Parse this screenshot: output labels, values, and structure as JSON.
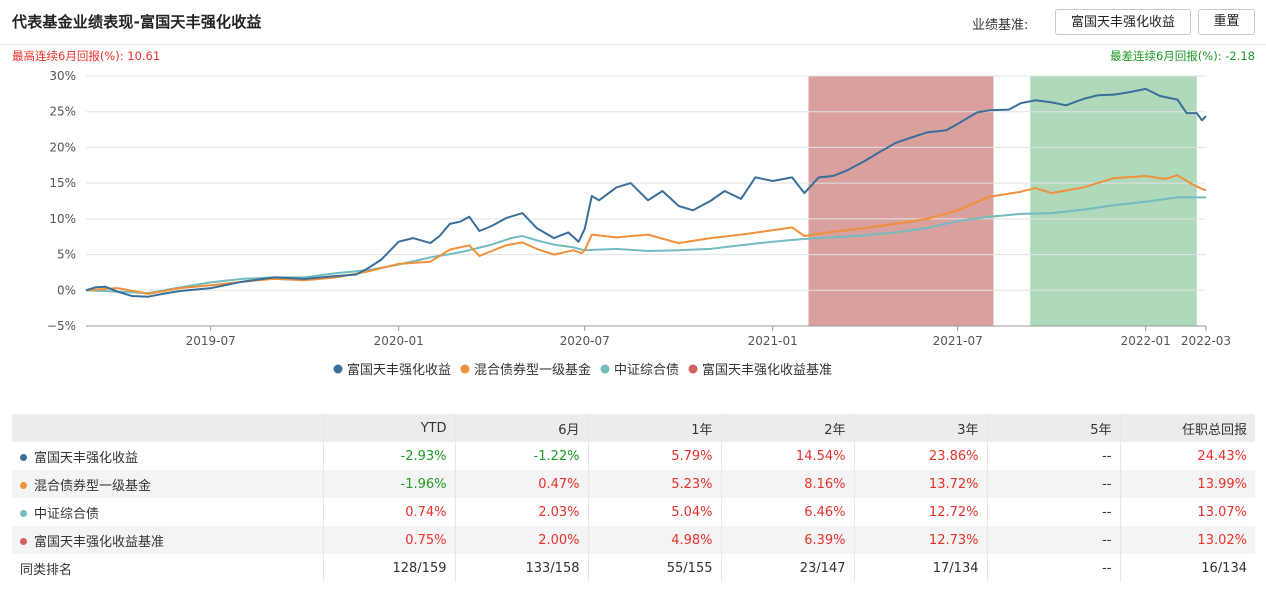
{
  "header": {
    "title": "代表基金业绩表现-富国天丰强化收益",
    "benchmark_label": "业绩基准:",
    "benchmark_value": "富国天丰强化收益",
    "reset_label": "重置"
  },
  "drawdown": {
    "max_text": "最高连续6月回报(%):  10.61",
    "min_text": "最差连续6月回报(%):  -2.18"
  },
  "colors": {
    "fund": "#3a6f9a",
    "category": "#f0913a",
    "index": "#72bcc0",
    "benchmark": "#d45f5f",
    "positive": "#e8322b",
    "negative": "#1e9a28",
    "best_period_fill": "#d28f8c",
    "worst_period_fill": "#a2d2b0"
  },
  "chart_data": {
    "type": "line",
    "ylim": [
      -5,
      30
    ],
    "y_ticks": [
      -5,
      0,
      5,
      10,
      15,
      20,
      25,
      30
    ],
    "y_tick_labels": [
      "−5%",
      "0%",
      "5%",
      "10%",
      "15%",
      "20%",
      "25%",
      "30%"
    ],
    "x_ticks": [
      "2019-07",
      "2020-01",
      "2020-07",
      "2021-01",
      "2021-07",
      "2022-01",
      "2022-03"
    ],
    "xlim": [
      "2019-03-01",
      "2022-03-01"
    ],
    "grid": true,
    "legend_position": "bottom",
    "highlight_periods": [
      {
        "kind": "best",
        "start": "2021-02-05",
        "end": "2021-08-05"
      },
      {
        "kind": "worst",
        "start": "2021-09-10",
        "end": "2022-02-20"
      }
    ],
    "series": [
      {
        "name": "富国天丰强化收益",
        "points": [
          [
            "2019-03-01",
            0
          ],
          [
            "2019-03-10",
            0.4
          ],
          [
            "2019-03-20",
            0.5
          ],
          [
            "2019-04-01",
            -0.2
          ],
          [
            "2019-04-15",
            -0.8
          ],
          [
            "2019-05-01",
            -0.9
          ],
          [
            "2019-05-15",
            -0.5
          ],
          [
            "2019-06-01",
            -0.1
          ],
          [
            "2019-07-01",
            0.3
          ],
          [
            "2019-08-01",
            1.2
          ],
          [
            "2019-09-01",
            1.8
          ],
          [
            "2019-10-01",
            1.6
          ],
          [
            "2019-11-01",
            2.0
          ],
          [
            "2019-11-20",
            2.2
          ],
          [
            "2019-12-01",
            3.0
          ],
          [
            "2019-12-15",
            4.3
          ],
          [
            "2020-01-01",
            6.8
          ],
          [
            "2020-01-15",
            7.3
          ],
          [
            "2020-02-01",
            6.6
          ],
          [
            "2020-02-10",
            7.6
          ],
          [
            "2020-02-20",
            9.3
          ],
          [
            "2020-03-01",
            9.6
          ],
          [
            "2020-03-10",
            10.3
          ],
          [
            "2020-03-20",
            8.3
          ],
          [
            "2020-04-01",
            9.0
          ],
          [
            "2020-04-15",
            10.1
          ],
          [
            "2020-05-01",
            10.8
          ],
          [
            "2020-05-15",
            8.7
          ],
          [
            "2020-06-01",
            7.3
          ],
          [
            "2020-06-15",
            8.1
          ],
          [
            "2020-06-25",
            6.8
          ],
          [
            "2020-07-01",
            8.6
          ],
          [
            "2020-07-08",
            13.2
          ],
          [
            "2020-07-15",
            12.6
          ],
          [
            "2020-08-01",
            14.4
          ],
          [
            "2020-08-15",
            15.0
          ],
          [
            "2020-09-01",
            12.6
          ],
          [
            "2020-09-15",
            13.9
          ],
          [
            "2020-10-01",
            11.8
          ],
          [
            "2020-10-15",
            11.2
          ],
          [
            "2020-11-01",
            12.5
          ],
          [
            "2020-11-15",
            13.9
          ],
          [
            "2020-12-01",
            12.8
          ],
          [
            "2020-12-15",
            15.8
          ],
          [
            "2021-01-01",
            15.3
          ],
          [
            "2021-01-20",
            15.8
          ],
          [
            "2021-02-01",
            13.6
          ],
          [
            "2021-02-15",
            15.8
          ],
          [
            "2021-03-01",
            16.0
          ],
          [
            "2021-03-15",
            16.8
          ],
          [
            "2021-04-01",
            18.1
          ],
          [
            "2021-04-15",
            19.3
          ],
          [
            "2021-05-01",
            20.6
          ],
          [
            "2021-05-15",
            21.3
          ],
          [
            "2021-06-01",
            22.1
          ],
          [
            "2021-06-20",
            22.4
          ],
          [
            "2021-07-01",
            23.3
          ],
          [
            "2021-07-20",
            24.9
          ],
          [
            "2021-08-01",
            25.2
          ],
          [
            "2021-08-20",
            25.3
          ],
          [
            "2021-09-01",
            26.2
          ],
          [
            "2021-09-15",
            26.6
          ],
          [
            "2021-10-01",
            26.3
          ],
          [
            "2021-10-15",
            25.9
          ],
          [
            "2021-11-01",
            26.8
          ],
          [
            "2021-11-15",
            27.3
          ],
          [
            "2021-12-01",
            27.4
          ],
          [
            "2021-12-15",
            27.7
          ],
          [
            "2022-01-01",
            28.2
          ],
          [
            "2022-01-15",
            27.2
          ],
          [
            "2022-02-01",
            26.7
          ],
          [
            "2022-02-10",
            24.8
          ],
          [
            "2022-02-20",
            24.8
          ],
          [
            "2022-02-25",
            23.8
          ],
          [
            "2022-03-01",
            24.4
          ]
        ]
      },
      {
        "name": "混合债券型一级基金",
        "points": [
          [
            "2019-03-01",
            0
          ],
          [
            "2019-04-01",
            0.3
          ],
          [
            "2019-05-01",
            -0.5
          ],
          [
            "2019-06-01",
            0.3
          ],
          [
            "2019-07-01",
            0.7
          ],
          [
            "2019-08-01",
            1.2
          ],
          [
            "2019-09-01",
            1.6
          ],
          [
            "2019-10-01",
            1.4
          ],
          [
            "2019-11-01",
            1.8
          ],
          [
            "2019-12-01",
            2.6
          ],
          [
            "2020-01-01",
            3.7
          ],
          [
            "2020-02-01",
            4.0
          ],
          [
            "2020-02-20",
            5.7
          ],
          [
            "2020-03-10",
            6.3
          ],
          [
            "2020-03-20",
            4.8
          ],
          [
            "2020-04-01",
            5.5
          ],
          [
            "2020-04-15",
            6.3
          ],
          [
            "2020-05-01",
            6.7
          ],
          [
            "2020-05-15",
            5.8
          ],
          [
            "2020-06-01",
            5.0
          ],
          [
            "2020-06-20",
            5.6
          ],
          [
            "2020-06-28",
            5.2
          ],
          [
            "2020-07-01",
            5.6
          ],
          [
            "2020-07-08",
            7.8
          ],
          [
            "2020-08-01",
            7.4
          ],
          [
            "2020-09-01",
            7.8
          ],
          [
            "2020-10-01",
            6.6
          ],
          [
            "2020-11-01",
            7.3
          ],
          [
            "2020-12-01",
            7.8
          ],
          [
            "2021-01-01",
            8.4
          ],
          [
            "2021-01-20",
            8.8
          ],
          [
            "2021-02-01",
            7.6
          ],
          [
            "2021-03-01",
            8.2
          ],
          [
            "2021-04-01",
            8.7
          ],
          [
            "2021-05-01",
            9.3
          ],
          [
            "2021-06-01",
            10.0
          ],
          [
            "2021-07-01",
            11.2
          ],
          [
            "2021-08-01",
            13.1
          ],
          [
            "2021-09-01",
            13.8
          ],
          [
            "2021-09-15",
            14.3
          ],
          [
            "2021-10-01",
            13.6
          ],
          [
            "2021-11-01",
            14.4
          ],
          [
            "2021-12-01",
            15.7
          ],
          [
            "2022-01-01",
            16.0
          ],
          [
            "2022-01-20",
            15.6
          ],
          [
            "2022-02-01",
            16.1
          ],
          [
            "2022-02-15",
            14.9
          ],
          [
            "2022-02-25",
            14.2
          ],
          [
            "2022-03-01",
            14.0
          ]
        ]
      },
      {
        "name": "中证综合债",
        "points": [
          [
            "2019-03-01",
            0
          ],
          [
            "2019-04-01",
            -0.2
          ],
          [
            "2019-05-01",
            -0.4
          ],
          [
            "2019-06-01",
            0.4
          ],
          [
            "2019-07-01",
            1.1
          ],
          [
            "2019-08-01",
            1.6
          ],
          [
            "2019-09-01",
            1.8
          ],
          [
            "2019-10-01",
            1.8
          ],
          [
            "2019-11-01",
            2.4
          ],
          [
            "2019-12-01",
            2.8
          ],
          [
            "2020-01-01",
            3.6
          ],
          [
            "2020-02-01",
            4.6
          ],
          [
            "2020-03-01",
            5.3
          ],
          [
            "2020-04-01",
            6.4
          ],
          [
            "2020-04-20",
            7.3
          ],
          [
            "2020-05-01",
            7.6
          ],
          [
            "2020-05-15",
            7.0
          ],
          [
            "2020-06-01",
            6.4
          ],
          [
            "2020-06-20",
            6.0
          ],
          [
            "2020-07-01",
            5.6
          ],
          [
            "2020-08-01",
            5.8
          ],
          [
            "2020-09-01",
            5.5
          ],
          [
            "2020-10-01",
            5.6
          ],
          [
            "2020-11-01",
            5.8
          ],
          [
            "2020-12-01",
            6.3
          ],
          [
            "2021-01-01",
            6.8
          ],
          [
            "2021-02-01",
            7.2
          ],
          [
            "2021-03-01",
            7.4
          ],
          [
            "2021-04-01",
            7.7
          ],
          [
            "2021-05-01",
            8.1
          ],
          [
            "2021-06-01",
            8.7
          ],
          [
            "2021-07-01",
            9.7
          ],
          [
            "2021-08-01",
            10.3
          ],
          [
            "2021-09-01",
            10.7
          ],
          [
            "2021-10-01",
            10.8
          ],
          [
            "2021-11-01",
            11.3
          ],
          [
            "2021-12-01",
            11.9
          ],
          [
            "2022-01-01",
            12.4
          ],
          [
            "2022-02-01",
            13.0
          ],
          [
            "2022-03-01",
            13.0
          ]
        ]
      },
      {
        "name": "富国天丰强化收益基准",
        "points": [
          [
            "2019-03-01",
            0
          ],
          [
            "2019-04-01",
            -0.2
          ],
          [
            "2019-05-01",
            -0.4
          ],
          [
            "2019-06-01",
            0.4
          ],
          [
            "2019-07-01",
            1.1
          ],
          [
            "2019-08-01",
            1.6
          ],
          [
            "2019-09-01",
            1.8
          ],
          [
            "2019-10-01",
            1.8
          ],
          [
            "2019-11-01",
            2.4
          ],
          [
            "2019-12-01",
            2.8
          ],
          [
            "2020-01-01",
            3.6
          ],
          [
            "2020-02-01",
            4.6
          ],
          [
            "2020-03-01",
            5.3
          ],
          [
            "2020-04-01",
            6.4
          ],
          [
            "2020-04-20",
            7.3
          ],
          [
            "2020-05-01",
            7.6
          ],
          [
            "2020-05-15",
            7.0
          ],
          [
            "2020-06-01",
            6.4
          ],
          [
            "2020-06-20",
            6.0
          ],
          [
            "2020-07-01",
            5.6
          ],
          [
            "2020-08-01",
            5.8
          ],
          [
            "2020-09-01",
            5.5
          ],
          [
            "2020-10-01",
            5.6
          ],
          [
            "2020-11-01",
            5.8
          ],
          [
            "2020-12-01",
            6.3
          ],
          [
            "2021-01-01",
            6.8
          ],
          [
            "2021-02-01",
            7.2
          ],
          [
            "2021-03-01",
            7.4
          ],
          [
            "2021-04-01",
            7.7
          ],
          [
            "2021-05-01",
            8.1
          ],
          [
            "2021-06-01",
            8.7
          ],
          [
            "2021-07-01",
            9.7
          ],
          [
            "2021-08-01",
            10.3
          ],
          [
            "2021-09-01",
            10.7
          ],
          [
            "2021-10-01",
            10.8
          ],
          [
            "2021-11-01",
            11.3
          ],
          [
            "2021-12-01",
            11.9
          ],
          [
            "2022-01-01",
            12.4
          ],
          [
            "2022-02-01",
            13.0
          ],
          [
            "2022-03-01",
            13.0
          ]
        ]
      }
    ]
  },
  "table": {
    "headers": [
      "",
      "YTD",
      "6月",
      "1年",
      "2年",
      "3年",
      "5年",
      "任职总回报"
    ],
    "rows": [
      {
        "name": "富国天丰强化收益",
        "dot": "fund",
        "values": [
          "-2.93%",
          "-1.22%",
          "5.79%",
          "14.54%",
          "23.86%",
          "--",
          "24.43%"
        ]
      },
      {
        "name": "混合债券型一级基金",
        "dot": "category",
        "values": [
          "-1.96%",
          "0.47%",
          "5.23%",
          "8.16%",
          "13.72%",
          "--",
          "13.99%"
        ]
      },
      {
        "name": "中证综合债",
        "dot": "index",
        "values": [
          "0.74%",
          "2.03%",
          "5.04%",
          "6.46%",
          "12.72%",
          "--",
          "13.07%"
        ]
      },
      {
        "name": "富国天丰强化收益基准",
        "dot": "benchmark",
        "values": [
          "0.75%",
          "2.00%",
          "4.98%",
          "6.39%",
          "12.73%",
          "--",
          "13.02%"
        ]
      },
      {
        "name": "同类排名",
        "dot": "",
        "values": [
          "128/159",
          "133/158",
          "55/155",
          "23/147",
          "17/134",
          "--",
          "16/134"
        ]
      }
    ]
  }
}
